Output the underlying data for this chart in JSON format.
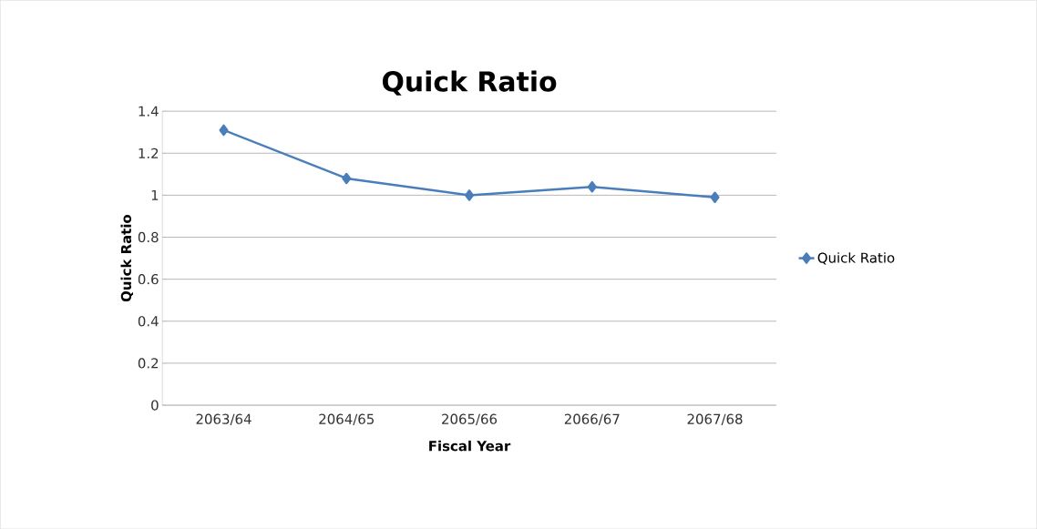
{
  "chart_data": {
    "type": "line",
    "title": "Quick Ratio",
    "xlabel": "Fiscal Year",
    "ylabel": "Quick Ratio",
    "categories": [
      "2063/64",
      "2064/65",
      "2065/66",
      "2066/67",
      "2067/68"
    ],
    "series": [
      {
        "name": "Quick Ratio",
        "color": "#4a7ebb",
        "values": [
          1.31,
          1.08,
          1.0,
          1.04,
          0.99
        ]
      }
    ],
    "ylim": [
      0,
      1.4
    ],
    "yticks": [
      0,
      0.2,
      0.4,
      0.6,
      0.8,
      1,
      1.2,
      1.4
    ],
    "grid": "y",
    "legend": "right",
    "marker": "diamond",
    "line_style": "solid"
  }
}
